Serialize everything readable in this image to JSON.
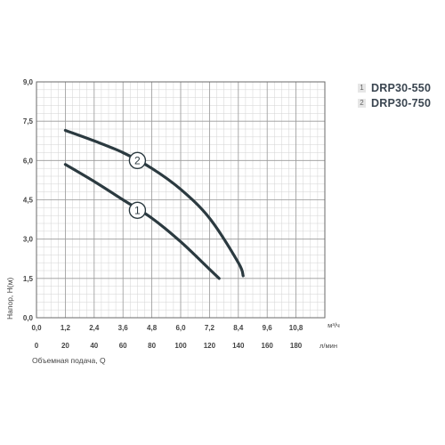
{
  "chart_data": {
    "type": "line",
    "xlabel": "Объемная подача, Q",
    "ylabel": "Напор, H(м)",
    "x_unit": "м³/ч",
    "x2_unit": "л/мин",
    "xlim": [
      0,
      12
    ],
    "ylim": [
      0,
      9
    ],
    "x_ticks": [
      "0,0",
      "1,2",
      "2,4",
      "3,6",
      "4,8",
      "6,0",
      "7,2",
      "8,4",
      "9,6",
      "10,8"
    ],
    "x_ticks_values": [
      0,
      1.2,
      2.4,
      3.6,
      4.8,
      6.0,
      7.2,
      8.4,
      9.6,
      10.8
    ],
    "x2_ticks": [
      "0",
      "20",
      "40",
      "60",
      "80",
      "100",
      "120",
      "140",
      "160",
      "180"
    ],
    "y_ticks": [
      "0,0",
      "1,5",
      "3,0",
      "4,5",
      "6,0",
      "7,5",
      "9,0"
    ],
    "y_ticks_values": [
      0,
      1.5,
      3.0,
      4.5,
      6.0,
      7.5,
      9.0
    ],
    "grid": true,
    "series": [
      {
        "name": "DRP30-550",
        "marker": "1",
        "x": [
          1.2,
          2.4,
          3.6,
          4.8,
          6.0,
          7.2,
          7.6
        ],
        "y": [
          5.85,
          5.2,
          4.5,
          3.8,
          2.9,
          1.85,
          1.5
        ]
      },
      {
        "name": "DRP30-750",
        "marker": "2",
        "x": [
          1.2,
          2.4,
          3.6,
          4.8,
          6.0,
          7.2,
          8.4,
          8.6
        ],
        "y": [
          7.15,
          6.75,
          6.3,
          5.7,
          4.9,
          3.8,
          2.1,
          1.6
        ]
      }
    ],
    "legend": {
      "placement": "top-right",
      "items": [
        {
          "num": "1",
          "label": "DRP30-550"
        },
        {
          "num": "2",
          "label": "DRP30-750"
        }
      ]
    }
  }
}
